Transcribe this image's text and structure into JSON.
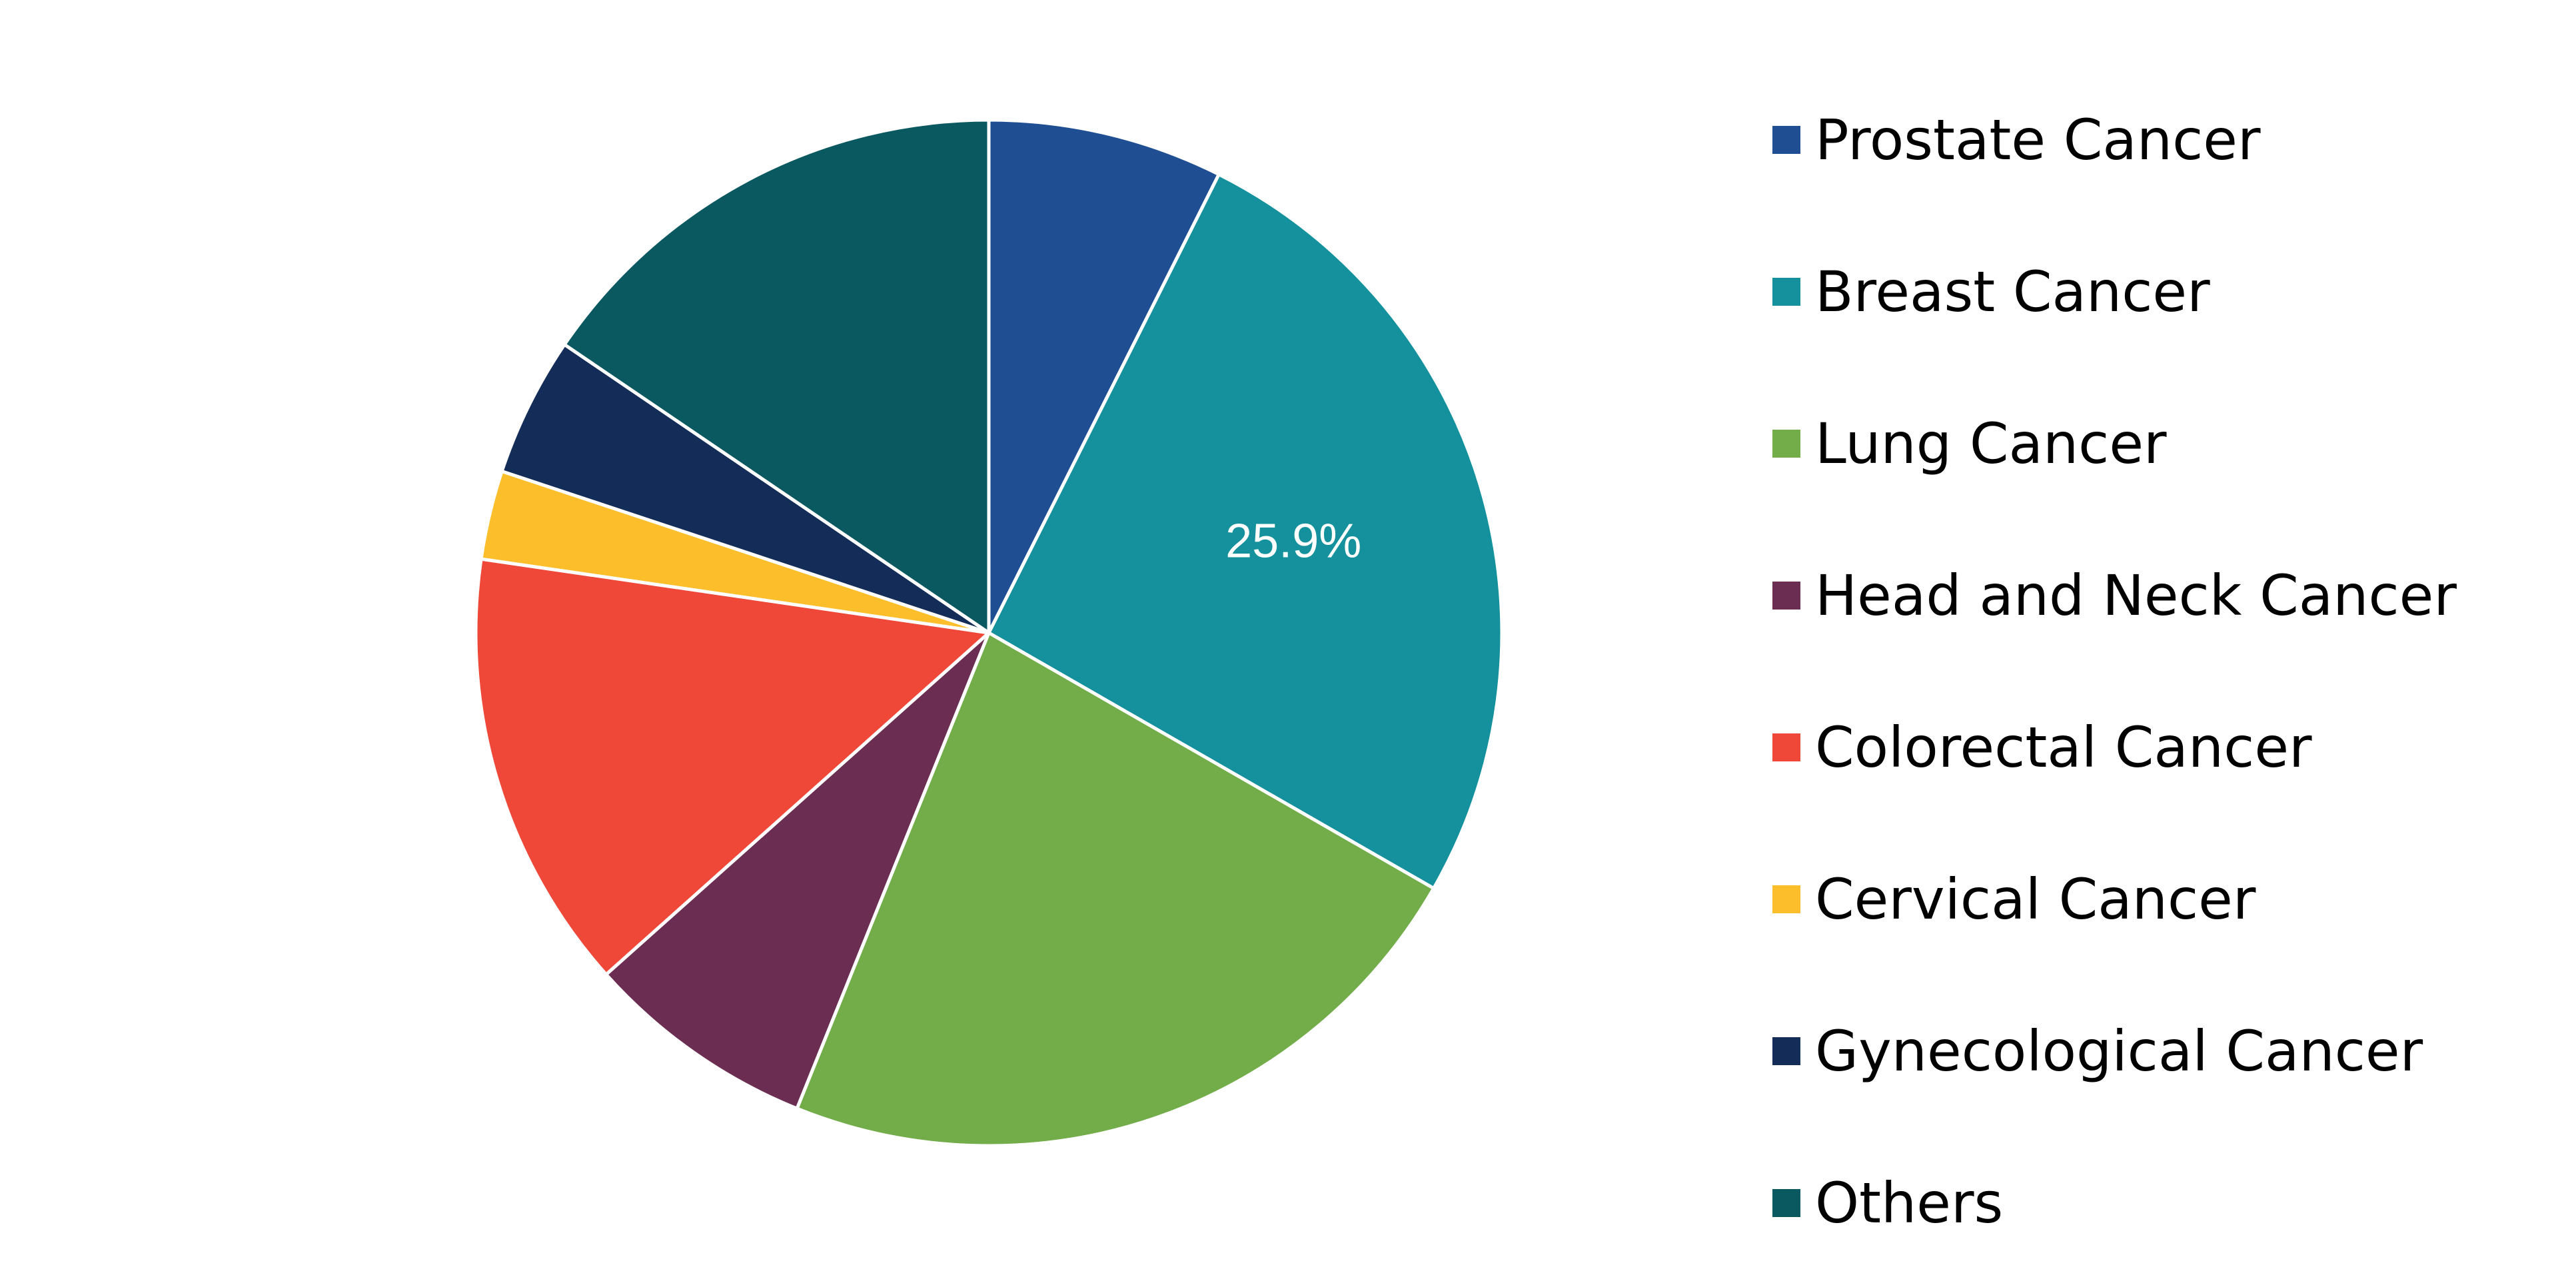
{
  "chart_data": {
    "type": "pie",
    "title": "",
    "slices": [
      {
        "label": "Prostate Cancer",
        "value": 7.4,
        "color": "#1f4e93"
      },
      {
        "label": "Breast Cancer",
        "value": 25.9,
        "color": "#14919c",
        "data_label": "25.9%"
      },
      {
        "label": "Lung Cancer",
        "value": 22.8,
        "color": "#72ad49"
      },
      {
        "label": "Head and Neck Cancer",
        "value": 7.3,
        "color": "#6b2d51"
      },
      {
        "label": "Colorectal Cancer",
        "value": 13.9,
        "color": "#ef4738"
      },
      {
        "label": "Cervical Cancer",
        "value": 2.8,
        "color": "#fcbf2b"
      },
      {
        "label": "Gynecological Cancer",
        "value": 4.4,
        "color": "#132d58"
      },
      {
        "label": "Others",
        "value": 15.5,
        "color": "#0a5960"
      }
    ],
    "start_angle": "top",
    "direction": "clockwise",
    "legend_position": "right"
  }
}
